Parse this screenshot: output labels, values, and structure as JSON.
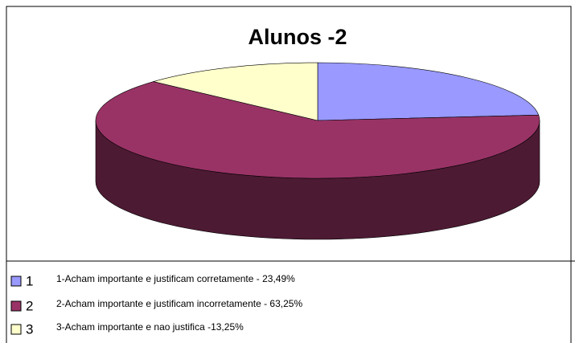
{
  "chart_data": {
    "type": "pie3d",
    "title": "Alunos -2",
    "categories": [
      "1",
      "2",
      "3"
    ],
    "values": [
      23.49,
      63.25,
      13.25
    ],
    "colors": [
      "#9999ff",
      "#993366",
      "#ffffcc"
    ],
    "side_colors": [
      "#4d4d80",
      "#4d1a33",
      "#80806a"
    ],
    "legend_texts": [
      "1-Acham importante e justificam corretamente - 23,49%",
      "2-Acham importante e justificam incorretamente - 63,25%",
      "3-Acham importante e nao justifica -13,25%"
    ]
  }
}
